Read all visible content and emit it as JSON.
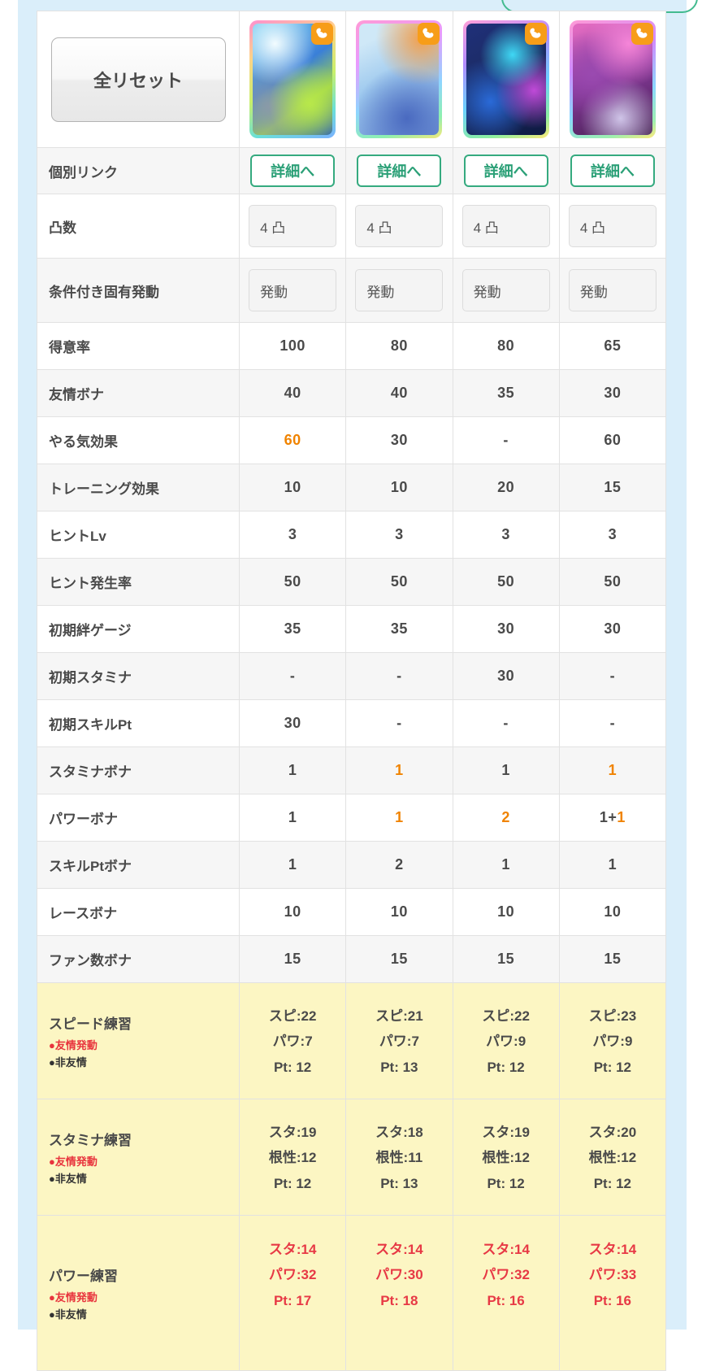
{
  "theme": {
    "page_blue": "#daeefa",
    "row_shade": "#f6f6f6",
    "training_yellow": "#fcf6c3",
    "accent_green": "#35aa7f",
    "accent_orange": "#f08300",
    "accent_red": "#e73945",
    "badge_orange": "#f79d18"
  },
  "toolbar": {
    "reset_label": "全リセット"
  },
  "cards": [
    {
      "badge_icon": "power-type-icon"
    },
    {
      "badge_icon": "power-type-icon"
    },
    {
      "badge_icon": "power-type-icon"
    },
    {
      "badge_icon": "power-type-icon"
    }
  ],
  "rows": {
    "link": {
      "label": "個別リンク",
      "button_label": "詳細へ"
    },
    "limit": {
      "label": "凸数",
      "value": "4 凸"
    },
    "unique": {
      "label": "条件付き固有発動",
      "value": "発動"
    }
  },
  "stat_rows": [
    {
      "label": "得意率",
      "values": [
        [
          {
            "t": "100"
          }
        ],
        [
          {
            "t": "80"
          }
        ],
        [
          {
            "t": "80"
          }
        ],
        [
          {
            "t": "65"
          }
        ]
      ]
    },
    {
      "label": "友情ボナ",
      "values": [
        [
          {
            "t": "40"
          }
        ],
        [
          {
            "t": "40"
          }
        ],
        [
          {
            "t": "35"
          }
        ],
        [
          {
            "t": "30"
          }
        ]
      ]
    },
    {
      "label": "やる気効果",
      "values": [
        [
          {
            "t": "60",
            "o": true
          }
        ],
        [
          {
            "t": "30"
          }
        ],
        [
          {
            "t": "-"
          }
        ],
        [
          {
            "t": "60"
          }
        ]
      ]
    },
    {
      "label": "トレーニング効果",
      "values": [
        [
          {
            "t": "10"
          }
        ],
        [
          {
            "t": "10"
          }
        ],
        [
          {
            "t": "20"
          }
        ],
        [
          {
            "t": "15"
          }
        ]
      ]
    },
    {
      "label": "ヒントLv",
      "values": [
        [
          {
            "t": "3"
          }
        ],
        [
          {
            "t": "3"
          }
        ],
        [
          {
            "t": "3"
          }
        ],
        [
          {
            "t": "3"
          }
        ]
      ]
    },
    {
      "label": "ヒント発生率",
      "values": [
        [
          {
            "t": "50"
          }
        ],
        [
          {
            "t": "50"
          }
        ],
        [
          {
            "t": "50"
          }
        ],
        [
          {
            "t": "50"
          }
        ]
      ]
    },
    {
      "label": "初期絆ゲージ",
      "values": [
        [
          {
            "t": "35"
          }
        ],
        [
          {
            "t": "35"
          }
        ],
        [
          {
            "t": "30"
          }
        ],
        [
          {
            "t": "30"
          }
        ]
      ]
    },
    {
      "label": "初期スタミナ",
      "values": [
        [
          {
            "t": "-"
          }
        ],
        [
          {
            "t": "-"
          }
        ],
        [
          {
            "t": "30"
          }
        ],
        [
          {
            "t": "-"
          }
        ]
      ]
    },
    {
      "label": "初期スキルPt",
      "values": [
        [
          {
            "t": "30"
          }
        ],
        [
          {
            "t": "-"
          }
        ],
        [
          {
            "t": "-"
          }
        ],
        [
          {
            "t": "-"
          }
        ]
      ]
    },
    {
      "label": "スタミナボナ",
      "values": [
        [
          {
            "t": "1"
          }
        ],
        [
          {
            "t": "1",
            "o": true
          }
        ],
        [
          {
            "t": "1"
          }
        ],
        [
          {
            "t": "1",
            "o": true
          }
        ]
      ]
    },
    {
      "label": "パワーボナ",
      "values": [
        [
          {
            "t": "1"
          }
        ],
        [
          {
            "t": "1",
            "o": true
          }
        ],
        [
          {
            "t": "2",
            "o": true
          }
        ],
        [
          {
            "t": "1+"
          },
          {
            "t": "1",
            "o": true
          }
        ]
      ]
    },
    {
      "label": "スキルPtボナ",
      "values": [
        [
          {
            "t": "1"
          }
        ],
        [
          {
            "t": "2"
          }
        ],
        [
          {
            "t": "1"
          }
        ],
        [
          {
            "t": "1"
          }
        ]
      ]
    },
    {
      "label": "レースボナ",
      "values": [
        [
          {
            "t": "10"
          }
        ],
        [
          {
            "t": "10"
          }
        ],
        [
          {
            "t": "10"
          }
        ],
        [
          {
            "t": "10"
          }
        ]
      ]
    },
    {
      "label": "ファン数ボナ",
      "values": [
        [
          {
            "t": "15"
          }
        ],
        [
          {
            "t": "15"
          }
        ],
        [
          {
            "t": "15"
          }
        ],
        [
          {
            "t": "15"
          }
        ]
      ]
    }
  ],
  "training_rows": [
    {
      "label": "スピード練習",
      "legend_friend": "●友情発動",
      "legend_non": "●非友情",
      "red": false,
      "cells": [
        [
          "スピ:22",
          "パワ:7",
          "Pt: 12"
        ],
        [
          "スピ:21",
          "パワ:7",
          "Pt: 13"
        ],
        [
          "スピ:22",
          "パワ:9",
          "Pt: 12"
        ],
        [
          "スピ:23",
          "パワ:9",
          "Pt: 12"
        ]
      ]
    },
    {
      "label": "スタミナ練習",
      "legend_friend": "●友情発動",
      "legend_non": "●非友情",
      "red": false,
      "cells": [
        [
          "スタ:19",
          "根性:12",
          "Pt: 12"
        ],
        [
          "スタ:18",
          "根性:11",
          "Pt: 13"
        ],
        [
          "スタ:19",
          "根性:12",
          "Pt: 12"
        ],
        [
          "スタ:20",
          "根性:12",
          "Pt: 12"
        ]
      ]
    },
    {
      "label": "パワー練習",
      "legend_friend": "●友情発動",
      "legend_non": "●非友情",
      "red": true,
      "cells": [
        [
          "スタ:14",
          "パワ:32",
          "Pt: 17"
        ],
        [
          "スタ:14",
          "パワ:30",
          "Pt: 18"
        ],
        [
          "スタ:14",
          "パワ:32",
          "Pt: 16"
        ],
        [
          "スタ:14",
          "パワ:33",
          "Pt: 16"
        ]
      ]
    }
  ]
}
